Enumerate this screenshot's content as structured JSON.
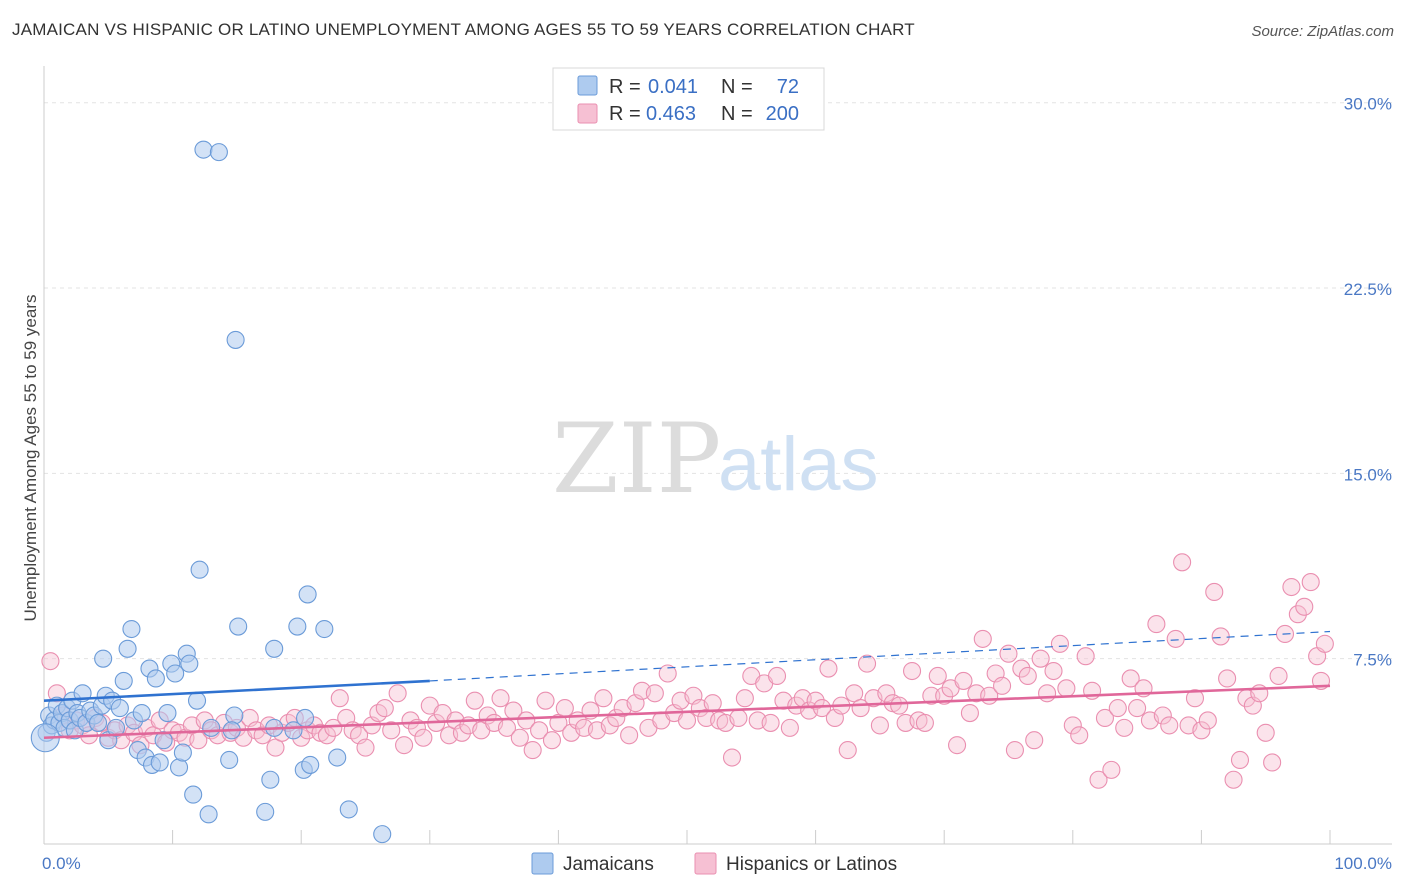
{
  "title": "JAMAICAN VS HISPANIC OR LATINO UNEMPLOYMENT AMONG AGES 55 TO 59 YEARS CORRELATION CHART",
  "source": "Source: ZipAtlas.com",
  "watermark": {
    "zip": "ZIP",
    "atlas": "atlas"
  },
  "legend_top": [
    {
      "r_label": "R =",
      "r_value": "0.041",
      "n_label": "N =",
      "n_value": "72"
    },
    {
      "r_label": "R =",
      "r_value": "0.463",
      "n_label": "N =",
      "n_value": "200"
    }
  ],
  "colors": {
    "jamaican_fill": "#aecbef",
    "jamaican_stroke": "#6b9bd8",
    "jamaican_line": "#2f72d0",
    "hispanic_fill": "#f6c0d3",
    "hispanic_stroke": "#ea8fb0",
    "hispanic_line": "#e0679a",
    "grid": "#e3e3e3",
    "tick_label": "#4a78c4"
  },
  "chart_data": {
    "type": "scatter",
    "title": "JAMAICAN VS HISPANIC OR LATINO UNEMPLOYMENT AMONG AGES 55 TO 59 YEARS CORRELATION CHART",
    "xlabel": "",
    "ylabel": "Unemployment Among Ages 55 to 59 years",
    "xlim": [
      0,
      100
    ],
    "ylim": [
      0,
      31
    ],
    "x_ticks": [
      "0.0%",
      "100.0%"
    ],
    "y_ticks": [
      {
        "value": 7.5,
        "label": "7.5%"
      },
      {
        "value": 15.0,
        "label": "15.0%"
      },
      {
        "value": 22.5,
        "label": "22.5%"
      },
      {
        "value": 30.0,
        "label": "30.0%"
      }
    ],
    "grid": "horizontal dashed",
    "legend_position": "bottom-center",
    "series": [
      {
        "name": "Jamaicans",
        "r": 0.041,
        "n": 72,
        "trend": {
          "x0": 0,
          "y0": 5.8,
          "x1": 30,
          "y1": 6.6,
          "dashed_to_x": 100,
          "dashed_to_y": 8.6
        },
        "points": [
          [
            0.2,
            4.5
          ],
          [
            0.4,
            5.2
          ],
          [
            0.6,
            4.8
          ],
          [
            0.8,
            5.0
          ],
          [
            1.0,
            5.6
          ],
          [
            1.2,
            4.9
          ],
          [
            1.4,
            5.3
          ],
          [
            1.6,
            4.7
          ],
          [
            1.8,
            5.5
          ],
          [
            2.0,
            5.0
          ],
          [
            2.2,
            5.8
          ],
          [
            2.4,
            4.6
          ],
          [
            2.6,
            5.3
          ],
          [
            2.8,
            5.1
          ],
          [
            3.0,
            6.1
          ],
          [
            3.3,
            4.9
          ],
          [
            3.6,
            5.4
          ],
          [
            3.9,
            5.2
          ],
          [
            4.2,
            4.9
          ],
          [
            4.5,
            5.6
          ],
          [
            4.8,
            6.0
          ],
          [
            4.6,
            7.5
          ],
          [
            5.0,
            4.2
          ],
          [
            5.3,
            5.8
          ],
          [
            5.6,
            4.7
          ],
          [
            5.9,
            5.5
          ],
          [
            6.2,
            6.6
          ],
          [
            6.5,
            7.9
          ],
          [
            6.8,
            8.7
          ],
          [
            7.0,
            5.0
          ],
          [
            7.3,
            3.8
          ],
          [
            7.6,
            5.3
          ],
          [
            7.9,
            3.5
          ],
          [
            8.2,
            7.1
          ],
          [
            8.4,
            3.2
          ],
          [
            8.7,
            6.7
          ],
          [
            9.0,
            3.3
          ],
          [
            9.3,
            4.2
          ],
          [
            9.6,
            5.3
          ],
          [
            9.9,
            7.3
          ],
          [
            10.2,
            6.9
          ],
          [
            10.5,
            3.1
          ],
          [
            10.8,
            3.7
          ],
          [
            11.1,
            7.7
          ],
          [
            11.3,
            7.3
          ],
          [
            11.6,
            2.0
          ],
          [
            11.9,
            5.8
          ],
          [
            12.1,
            11.1
          ],
          [
            12.4,
            28.1
          ],
          [
            12.8,
            1.2
          ],
          [
            13.0,
            4.7
          ],
          [
            13.6,
            28.0
          ],
          [
            14.4,
            3.4
          ],
          [
            14.8,
            5.2
          ],
          [
            14.6,
            4.6
          ],
          [
            14.9,
            20.4
          ],
          [
            15.1,
            8.8
          ],
          [
            17.2,
            1.3
          ],
          [
            17.6,
            2.6
          ],
          [
            17.9,
            4.7
          ],
          [
            17.9,
            7.9
          ],
          [
            19.4,
            4.6
          ],
          [
            19.7,
            8.8
          ],
          [
            20.2,
            3.0
          ],
          [
            20.3,
            5.1
          ],
          [
            20.5,
            10.1
          ],
          [
            20.7,
            3.2
          ],
          [
            21.8,
            8.7
          ],
          [
            22.8,
            3.5
          ],
          [
            23.7,
            1.4
          ],
          [
            26.3,
            0.4
          ],
          [
            0.1,
            4.3
          ]
        ]
      },
      {
        "name": "Hispanics or Latinos",
        "r": 0.463,
        "n": 200,
        "trend": {
          "x0": 0,
          "y0": 4.3,
          "x1": 100,
          "y1": 6.4
        },
        "points": [
          [
            0.5,
            7.4
          ],
          [
            1.0,
            6.1
          ],
          [
            1.5,
            5.2
          ],
          [
            2.0,
            4.6
          ],
          [
            2.5,
            5.0
          ],
          [
            3.0,
            4.8
          ],
          [
            3.5,
            4.4
          ],
          [
            4.0,
            5.1
          ],
          [
            4.5,
            4.9
          ],
          [
            5.0,
            4.3
          ],
          [
            5.5,
            4.6
          ],
          [
            6.0,
            4.2
          ],
          [
            6.5,
            4.8
          ],
          [
            7.0,
            4.5
          ],
          [
            7.5,
            4.0
          ],
          [
            8.0,
            4.7
          ],
          [
            8.5,
            4.4
          ],
          [
            9.0,
            5.0
          ],
          [
            9.5,
            4.1
          ],
          [
            10.0,
            4.6
          ],
          [
            10.5,
            4.5
          ],
          [
            11.0,
            4.3
          ],
          [
            11.5,
            4.8
          ],
          [
            12.0,
            4.2
          ],
          [
            12.5,
            5.0
          ],
          [
            13.0,
            4.6
          ],
          [
            13.5,
            4.4
          ],
          [
            14.0,
            4.9
          ],
          [
            14.5,
            4.5
          ],
          [
            15.0,
            4.7
          ],
          [
            15.5,
            4.3
          ],
          [
            16.0,
            5.1
          ],
          [
            16.5,
            4.6
          ],
          [
            17.0,
            4.4
          ],
          [
            17.5,
            4.8
          ],
          [
            18.0,
            3.9
          ],
          [
            18.5,
            4.5
          ],
          [
            19.0,
            4.9
          ],
          [
            19.5,
            5.1
          ],
          [
            20.0,
            4.3
          ],
          [
            20.5,
            4.6
          ],
          [
            21.0,
            4.8
          ],
          [
            21.5,
            4.5
          ],
          [
            22.0,
            4.4
          ],
          [
            22.5,
            4.7
          ],
          [
            23.0,
            5.9
          ],
          [
            23.5,
            5.1
          ],
          [
            24.0,
            4.6
          ],
          [
            24.5,
            4.4
          ],
          [
            25.0,
            3.9
          ],
          [
            25.5,
            4.8
          ],
          [
            26.0,
            5.3
          ],
          [
            26.5,
            5.5
          ],
          [
            27.0,
            4.6
          ],
          [
            27.5,
            6.1
          ],
          [
            28.0,
            4.0
          ],
          [
            28.5,
            5.0
          ],
          [
            29.0,
            4.7
          ],
          [
            29.5,
            4.3
          ],
          [
            30.0,
            5.6
          ],
          [
            30.5,
            4.9
          ],
          [
            31.0,
            5.3
          ],
          [
            31.5,
            4.4
          ],
          [
            32.0,
            5.0
          ],
          [
            32.5,
            4.5
          ],
          [
            33.0,
            4.8
          ],
          [
            33.5,
            5.8
          ],
          [
            34.0,
            4.6
          ],
          [
            34.5,
            5.2
          ],
          [
            35.0,
            4.9
          ],
          [
            35.5,
            5.9
          ],
          [
            36.0,
            4.7
          ],
          [
            36.5,
            5.4
          ],
          [
            37.0,
            4.3
          ],
          [
            37.5,
            5.0
          ],
          [
            38.0,
            3.8
          ],
          [
            38.5,
            4.6
          ],
          [
            39.0,
            5.8
          ],
          [
            39.5,
            4.2
          ],
          [
            40.0,
            4.9
          ],
          [
            40.5,
            5.5
          ],
          [
            41.0,
            4.5
          ],
          [
            41.5,
            5.0
          ],
          [
            42.0,
            4.7
          ],
          [
            42.5,
            5.4
          ],
          [
            43.0,
            4.6
          ],
          [
            43.5,
            5.9
          ],
          [
            44.0,
            4.8
          ],
          [
            44.5,
            5.1
          ],
          [
            45.0,
            5.5
          ],
          [
            45.5,
            4.4
          ],
          [
            46.0,
            5.7
          ],
          [
            46.5,
            6.2
          ],
          [
            47.0,
            4.7
          ],
          [
            47.5,
            6.1
          ],
          [
            48.0,
            5.0
          ],
          [
            48.5,
            6.9
          ],
          [
            49.0,
            5.3
          ],
          [
            49.5,
            5.8
          ],
          [
            50.0,
            5.0
          ],
          [
            50.5,
            6.0
          ],
          [
            51.0,
            5.5
          ],
          [
            51.5,
            5.1
          ],
          [
            52.0,
            5.7
          ],
          [
            52.5,
            5.0
          ],
          [
            53.0,
            4.9
          ],
          [
            53.5,
            3.5
          ],
          [
            54.0,
            5.1
          ],
          [
            54.5,
            5.9
          ],
          [
            55.0,
            6.8
          ],
          [
            55.5,
            5.0
          ],
          [
            56.0,
            6.5
          ],
          [
            56.5,
            4.9
          ],
          [
            57.0,
            6.8
          ],
          [
            57.5,
            5.8
          ],
          [
            58.0,
            4.7
          ],
          [
            58.5,
            5.6
          ],
          [
            59.0,
            5.9
          ],
          [
            59.5,
            5.4
          ],
          [
            60.0,
            5.8
          ],
          [
            60.5,
            5.5
          ],
          [
            61.0,
            7.1
          ],
          [
            61.5,
            5.1
          ],
          [
            62.0,
            5.6
          ],
          [
            62.5,
            3.8
          ],
          [
            63.0,
            6.1
          ],
          [
            63.5,
            5.5
          ],
          [
            64.0,
            7.3
          ],
          [
            64.5,
            5.9
          ],
          [
            65.0,
            4.8
          ],
          [
            65.5,
            6.1
          ],
          [
            66.0,
            5.7
          ],
          [
            66.5,
            5.6
          ],
          [
            67.0,
            4.9
          ],
          [
            67.5,
            7.0
          ],
          [
            68.0,
            5.0
          ],
          [
            68.5,
            4.9
          ],
          [
            69.0,
            6.0
          ],
          [
            69.5,
            6.8
          ],
          [
            70.0,
            6.0
          ],
          [
            70.5,
            6.3
          ],
          [
            71.0,
            4.0
          ],
          [
            71.5,
            6.6
          ],
          [
            72.0,
            5.3
          ],
          [
            72.5,
            6.1
          ],
          [
            73.0,
            8.3
          ],
          [
            73.5,
            6.0
          ],
          [
            74.0,
            6.9
          ],
          [
            74.5,
            6.4
          ],
          [
            75.0,
            7.7
          ],
          [
            75.5,
            3.8
          ],
          [
            76.0,
            7.1
          ],
          [
            76.5,
            6.8
          ],
          [
            77.0,
            4.2
          ],
          [
            77.5,
            7.5
          ],
          [
            78.0,
            6.1
          ],
          [
            78.5,
            7.0
          ],
          [
            79.0,
            8.1
          ],
          [
            79.5,
            6.3
          ],
          [
            80.0,
            4.8
          ],
          [
            80.5,
            4.4
          ],
          [
            81.0,
            7.6
          ],
          [
            81.5,
            6.2
          ],
          [
            82.0,
            2.6
          ],
          [
            82.5,
            5.1
          ],
          [
            83.0,
            3.0
          ],
          [
            83.5,
            5.5
          ],
          [
            84.0,
            4.7
          ],
          [
            84.5,
            6.7
          ],
          [
            85.0,
            5.5
          ],
          [
            85.5,
            6.3
          ],
          [
            86.0,
            5.0
          ],
          [
            86.5,
            8.9
          ],
          [
            87.0,
            5.2
          ],
          [
            87.5,
            4.8
          ],
          [
            88.0,
            8.3
          ],
          [
            88.5,
            11.4
          ],
          [
            89.0,
            4.8
          ],
          [
            89.5,
            5.9
          ],
          [
            90.0,
            4.6
          ],
          [
            90.5,
            5.0
          ],
          [
            91.0,
            10.2
          ],
          [
            91.5,
            8.4
          ],
          [
            92.0,
            6.7
          ],
          [
            92.5,
            2.6
          ],
          [
            93.0,
            3.4
          ],
          [
            93.5,
            5.9
          ],
          [
            94.0,
            5.6
          ],
          [
            94.5,
            6.1
          ],
          [
            95.0,
            4.5
          ],
          [
            95.5,
            3.3
          ],
          [
            96.0,
            6.8
          ],
          [
            96.5,
            8.5
          ],
          [
            97.0,
            10.4
          ],
          [
            97.5,
            9.3
          ],
          [
            98.0,
            9.6
          ],
          [
            98.5,
            10.6
          ],
          [
            99.0,
            7.6
          ],
          [
            99.3,
            6.6
          ],
          [
            99.6,
            8.1
          ]
        ]
      }
    ]
  }
}
